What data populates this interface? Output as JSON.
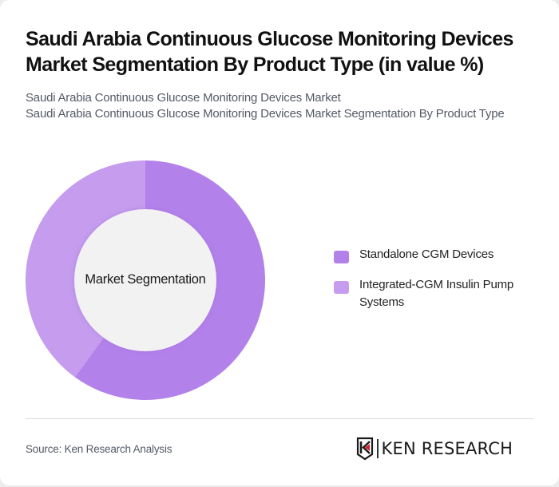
{
  "header": {
    "title": "Saudi Arabia Continuous Glucose Monitoring Devices Market Segmentation By Product Type (in value %)",
    "subtitle_line1": "Saudi Arabia Continuous Glucose Monitoring Devices Market",
    "subtitle_line2": "Saudi Arabia Continuous Glucose Monitoring Devices Market Segmentation By Product Type"
  },
  "chart": {
    "center_label": "Market Segmentation",
    "legend": [
      {
        "label": "Standalone CGM Devices",
        "color": "#b381ea"
      },
      {
        "label": "Integrated-CGM Insulin Pump Systems",
        "color": "#c59cee"
      }
    ]
  },
  "chart_data": {
    "type": "pie",
    "variant": "donut",
    "title": "Saudi Arabia Continuous Glucose Monitoring Devices Market Segmentation By Product Type (in value %)",
    "center_text": "Market Segmentation",
    "categories": [
      "Standalone CGM Devices",
      "Integrated-CGM Insulin Pump Systems"
    ],
    "values": [
      60,
      40
    ],
    "colors": [
      "#b381ea",
      "#c59cee"
    ],
    "legend_position": "right"
  },
  "footer": {
    "source": "Source: Ken Research Analysis",
    "logo_text": "KEN RESEARCH",
    "logo_icon": "ken-research-k-shield-icon"
  }
}
